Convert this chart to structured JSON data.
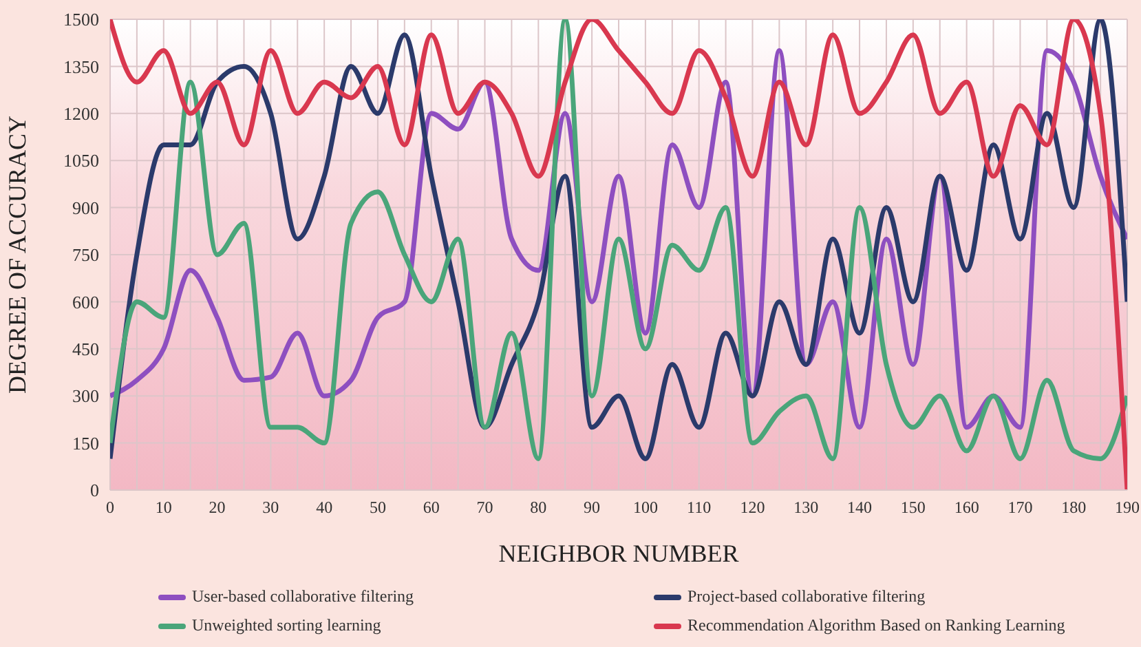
{
  "chart_data": {
    "type": "line",
    "xlabel": "NEIGHBOR NUMBER",
    "ylabel": "DEGREE OF ACCURACY",
    "x": [
      0,
      5,
      10,
      15,
      20,
      25,
      30,
      35,
      40,
      45,
      50,
      55,
      60,
      65,
      70,
      75,
      80,
      85,
      90,
      95,
      100,
      105,
      110,
      115,
      120,
      125,
      130,
      135,
      140,
      145,
      150,
      155,
      160,
      165,
      170,
      175,
      180,
      185,
      190
    ],
    "series": [
      {
        "name": "User-based collaborative filtering",
        "color": "#8e4fc0",
        "values": [
          300,
          350,
          450,
          700,
          550,
          350,
          360,
          500,
          300,
          350,
          550,
          600,
          1200,
          1150,
          1300,
          800,
          700,
          1200,
          600,
          1000,
          500,
          1100,
          900,
          1300,
          300,
          1400,
          400,
          600,
          200,
          800,
          400,
          1000,
          200,
          300,
          200,
          1400,
          1300,
          1000,
          800
        ]
      },
      {
        "name": "Project-based collaborative filtering",
        "color": "#2b3a6b",
        "values": [
          100,
          750,
          1100,
          1100,
          1300,
          1350,
          1200,
          800,
          1000,
          1350,
          1200,
          1450,
          1000,
          600,
          200,
          400,
          600,
          1000,
          200,
          300,
          100,
          400,
          200,
          500,
          300,
          600,
          400,
          800,
          500,
          900,
          600,
          1000,
          700,
          1100,
          800,
          1200,
          900,
          1500,
          600
        ]
      },
      {
        "name": "Unweighted sorting learning",
        "color": "#4aa57a",
        "values": [
          150,
          600,
          550,
          1300,
          750,
          850,
          200,
          200,
          150,
          850,
          950,
          750,
          600,
          800,
          200,
          500,
          100,
          1500,
          300,
          800,
          450,
          780,
          700,
          900,
          150,
          250,
          300,
          100,
          900,
          400,
          200,
          300,
          125,
          300,
          100,
          350,
          125,
          100,
          300
        ]
      },
      {
        "name": "Recommendation Algorithm Based on Ranking Learning",
        "color": "#d9384f",
        "values": [
          1500,
          1300,
          1400,
          1200,
          1300,
          1100,
          1400,
          1200,
          1300,
          1250,
          1350,
          1100,
          1450,
          1200,
          1300,
          1200,
          1000,
          1300,
          1500,
          1400,
          1300,
          1200,
          1400,
          1250,
          1000,
          1300,
          1100,
          1450,
          1200,
          1300,
          1450,
          1200,
          1300,
          1000,
          1225,
          1100,
          1500,
          1200,
          0
        ]
      }
    ],
    "xlim": [
      0,
      190
    ],
    "xticks": [
      0,
      {
        "value": 5,
        "label": null
      },
      10,
      {
        "value": 15,
        "label": null
      },
      20,
      {
        "value": 25,
        "label": null
      },
      30,
      {
        "value": 35,
        "label": null
      },
      40,
      {
        "value": 45,
        "label": null
      },
      50,
      {
        "value": 55,
        "label": null
      },
      60,
      {
        "value": 65,
        "label": null
      },
      70,
      {
        "value": 75,
        "label": null
      },
      80,
      {
        "value": 85,
        "label": null
      },
      90,
      {
        "value": 95,
        "label": null
      },
      100,
      {
        "value": 105,
        "label": null
      },
      110,
      {
        "value": 115,
        "label": null
      },
      120,
      {
        "value": 125,
        "label": null
      },
      130,
      {
        "value": 135,
        "label": null
      },
      140,
      {
        "value": 145,
        "label": null
      },
      150,
      {
        "value": 155,
        "label": null
      },
      160,
      {
        "value": 165,
        "label": null
      },
      170,
      {
        "value": 175,
        "label": null
      },
      180,
      {
        "value": 185,
        "label": null
      },
      190
    ],
    "ylim": [
      0,
      1500
    ],
    "yticks": [
      0,
      150,
      300,
      450,
      600,
      750,
      900,
      1050,
      1200,
      1350,
      1500
    ],
    "grid": true,
    "legend": "bottom",
    "marker": "none",
    "line_style": "solid"
  }
}
